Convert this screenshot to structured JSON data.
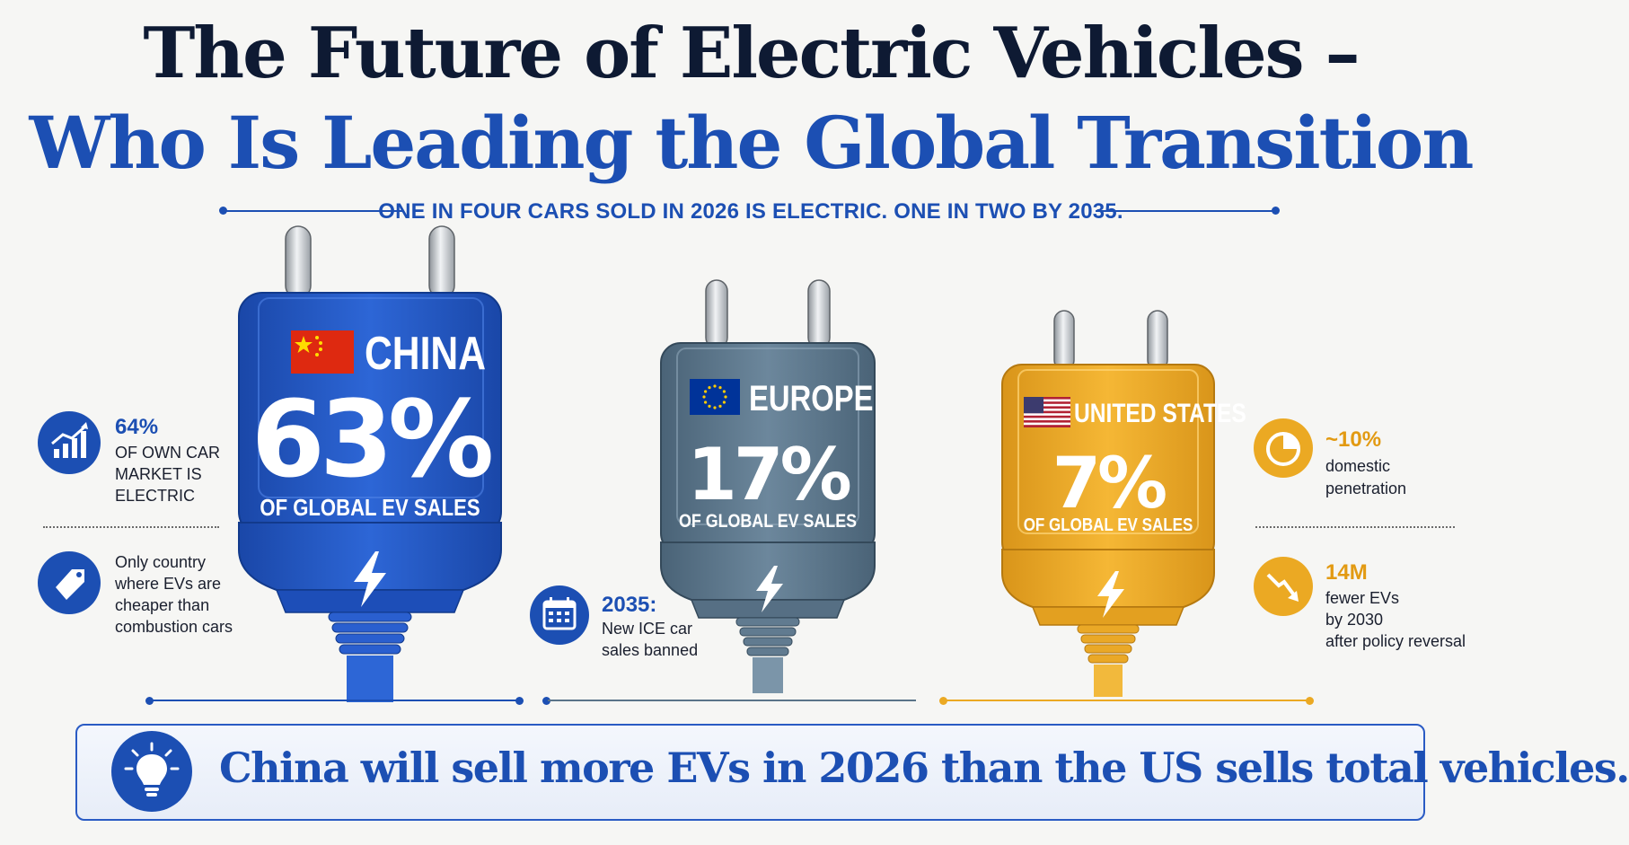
{
  "header": {
    "title_line1": "The Future of Electric Vehicles –",
    "title_line2": "Who Is Leading the Global Transition",
    "subtitle": "ONE IN FOUR CARS SOLD IN 2026 IS ELECTRIC. ONE IN TWO BY 2035."
  },
  "plugs": [
    {
      "id": "china",
      "country": "CHINA",
      "value": "63%",
      "label": "OF GLOBAL EV SALES",
      "color": "#2458c6",
      "share": 63
    },
    {
      "id": "europe",
      "country": "EUROPE",
      "value": "17%",
      "label": "OF GLOBAL EV SALES",
      "color": "#5a7489",
      "share": 17
    },
    {
      "id": "us",
      "country": "UNITED STATES",
      "value": "7%",
      "label": "OF GLOBAL EV SALES",
      "color": "#eba923",
      "share": 7
    }
  ],
  "china_stats": [
    {
      "icon": "growth-chart-icon",
      "value": "64%",
      "lines": [
        "OF OWN CAR",
        "MARKET IS",
        "ELECTRIC"
      ]
    },
    {
      "icon": "price-tag-icon",
      "lines": [
        "Only country",
        "where EVs are",
        "cheaper than",
        "combustion cars"
      ]
    }
  ],
  "europe_stats": [
    {
      "icon": "calendar-icon",
      "value": "2035:",
      "lines": [
        "New ICE car",
        "sales banned"
      ]
    }
  ],
  "us_stats": [
    {
      "icon": "pie-chart-icon",
      "value": "~10%",
      "lines": [
        "domestic",
        "penetration"
      ]
    },
    {
      "icon": "trend-down-icon",
      "value": "14M",
      "lines": [
        "fewer EVs",
        "by 2030",
        "after policy reversal"
      ]
    }
  ],
  "footer": {
    "icon": "lightbulb-icon",
    "text": "China will sell more EVs in 2026 than the US sells total vehicles."
  },
  "colors": {
    "navy": "#0e1a33",
    "blue": "#1c4fb3",
    "china_blue": "#2458c6",
    "europe_slate": "#5a7489",
    "us_gold": "#eba923"
  }
}
